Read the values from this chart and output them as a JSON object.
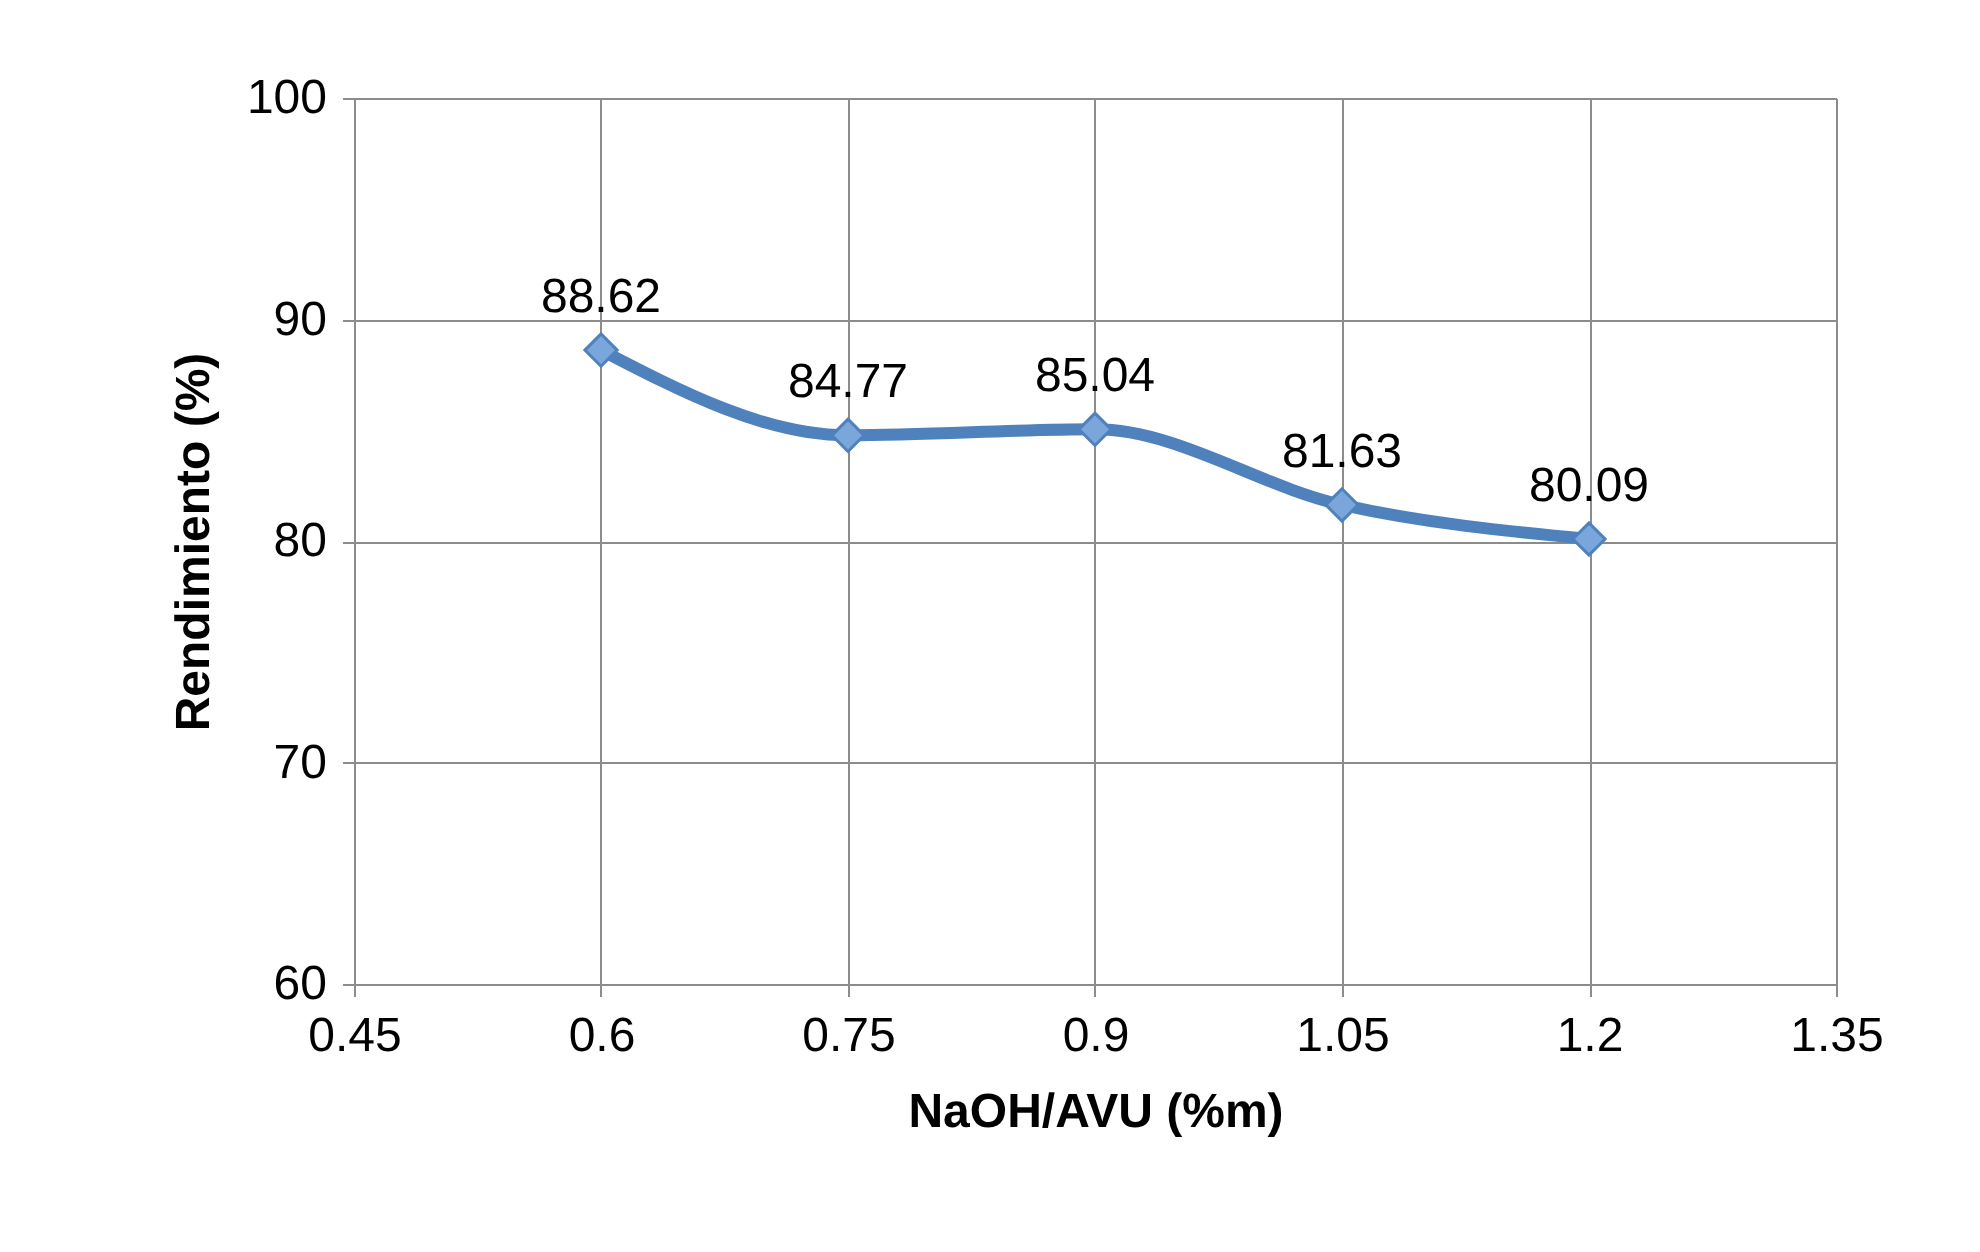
{
  "chart_data": {
    "type": "line",
    "xlabel": "NaOH/AVU (%m)",
    "ylabel": "Rendimiento (%)",
    "x": [
      0.6,
      0.75,
      0.9,
      1.05,
      1.2
    ],
    "series": [
      {
        "color": "#4f81bd",
        "values": [
          88.62,
          84.77,
          85.04,
          81.63,
          80.09
        ]
      }
    ],
    "xlim": [
      0.45,
      1.35
    ],
    "xticks": [
      0.45,
      0.6,
      0.75,
      0.9,
      1.05,
      1.2,
      1.35
    ],
    "ylim": [
      60,
      100
    ],
    "yticks": [
      60,
      70,
      80,
      90,
      100
    ],
    "grid": true,
    "marker": "diamond",
    "data_labels": true,
    "legend": false
  }
}
